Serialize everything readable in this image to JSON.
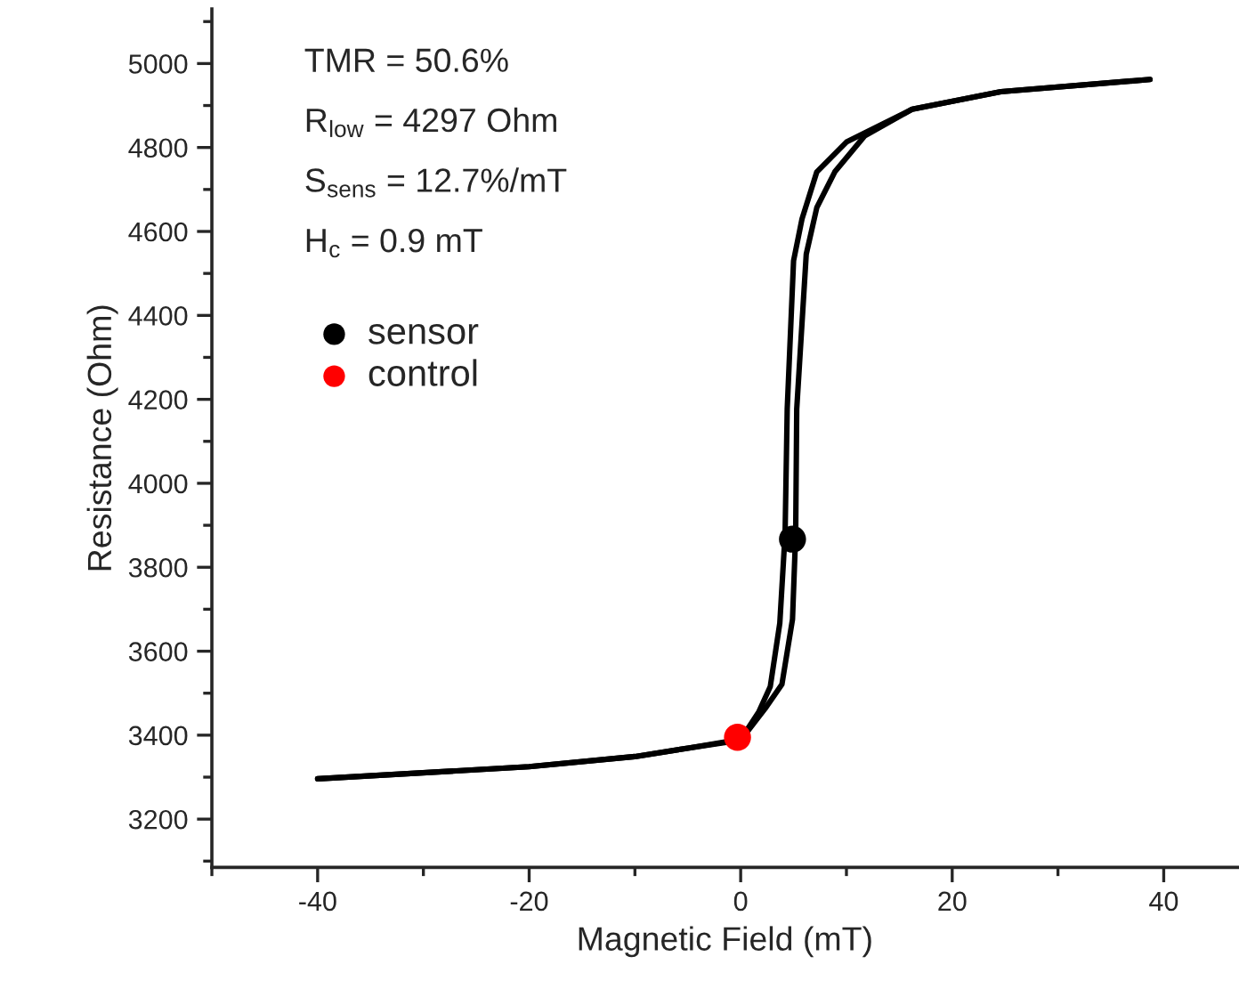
{
  "chart_data": {
    "type": "line",
    "xlabel": "Magnetic Field (mT)",
    "ylabel": "Resistance (Ohm)",
    "annotations": [
      "TMR = 50.6%",
      "R$_{low}$ = 4297 Ohm",
      "S$_{sens}$ = 12.7%/mT",
      "H$_{c}$ = 0.9 mT"
    ],
    "series": [
      {
        "color": "#000000",
        "x": [
          -40,
          -20,
          -10,
          -5,
          0,
          1.7,
          2.8,
          3.7,
          4.2,
          4.4,
          5.0,
          5.8,
          7.2,
          10.0,
          16.2,
          24.6,
          38.7
        ],
        "values": [
          3296,
          3325,
          3349,
          3369,
          3390,
          3455,
          3516,
          3667,
          3880,
          4177,
          4530,
          4630,
          4742,
          4813,
          4891,
          4933,
          4962
        ]
      },
      {
        "color": "#000000",
        "x": [
          -40,
          -20,
          -10,
          -5,
          0,
          2.3,
          3.9,
          4.9,
          5.2,
          5.3,
          6.2,
          7.2,
          8.9,
          11.7,
          16.2,
          24.6,
          38.7
        ],
        "values": [
          3296,
          3325,
          3349,
          3369,
          3388,
          3463,
          3521,
          3676,
          3880,
          4177,
          4546,
          4657,
          4742,
          4827,
          4891,
          4933,
          4962
        ]
      },
      {
        "type": "scatter",
        "name": "sensor",
        "color": "#000000",
        "marker": "circle",
        "x": [
          4.9
        ],
        "values": [
          3867
        ]
      },
      {
        "type": "scatter",
        "name": "control",
        "color": "#ff0000",
        "marker": "circle",
        "x": [
          -0.3
        ],
        "values": [
          3395
        ]
      }
    ],
    "xlim": [
      -50,
      47
    ],
    "xticks": [
      -40,
      -20,
      0,
      20,
      40
    ],
    "ylim": [
      3085,
      5130
    ],
    "yticks": [
      3200,
      3400,
      3600,
      3800,
      4000,
      4200,
      4400,
      4600,
      4800,
      5000
    ],
    "legend": "top left",
    "line_style": "solid"
  }
}
